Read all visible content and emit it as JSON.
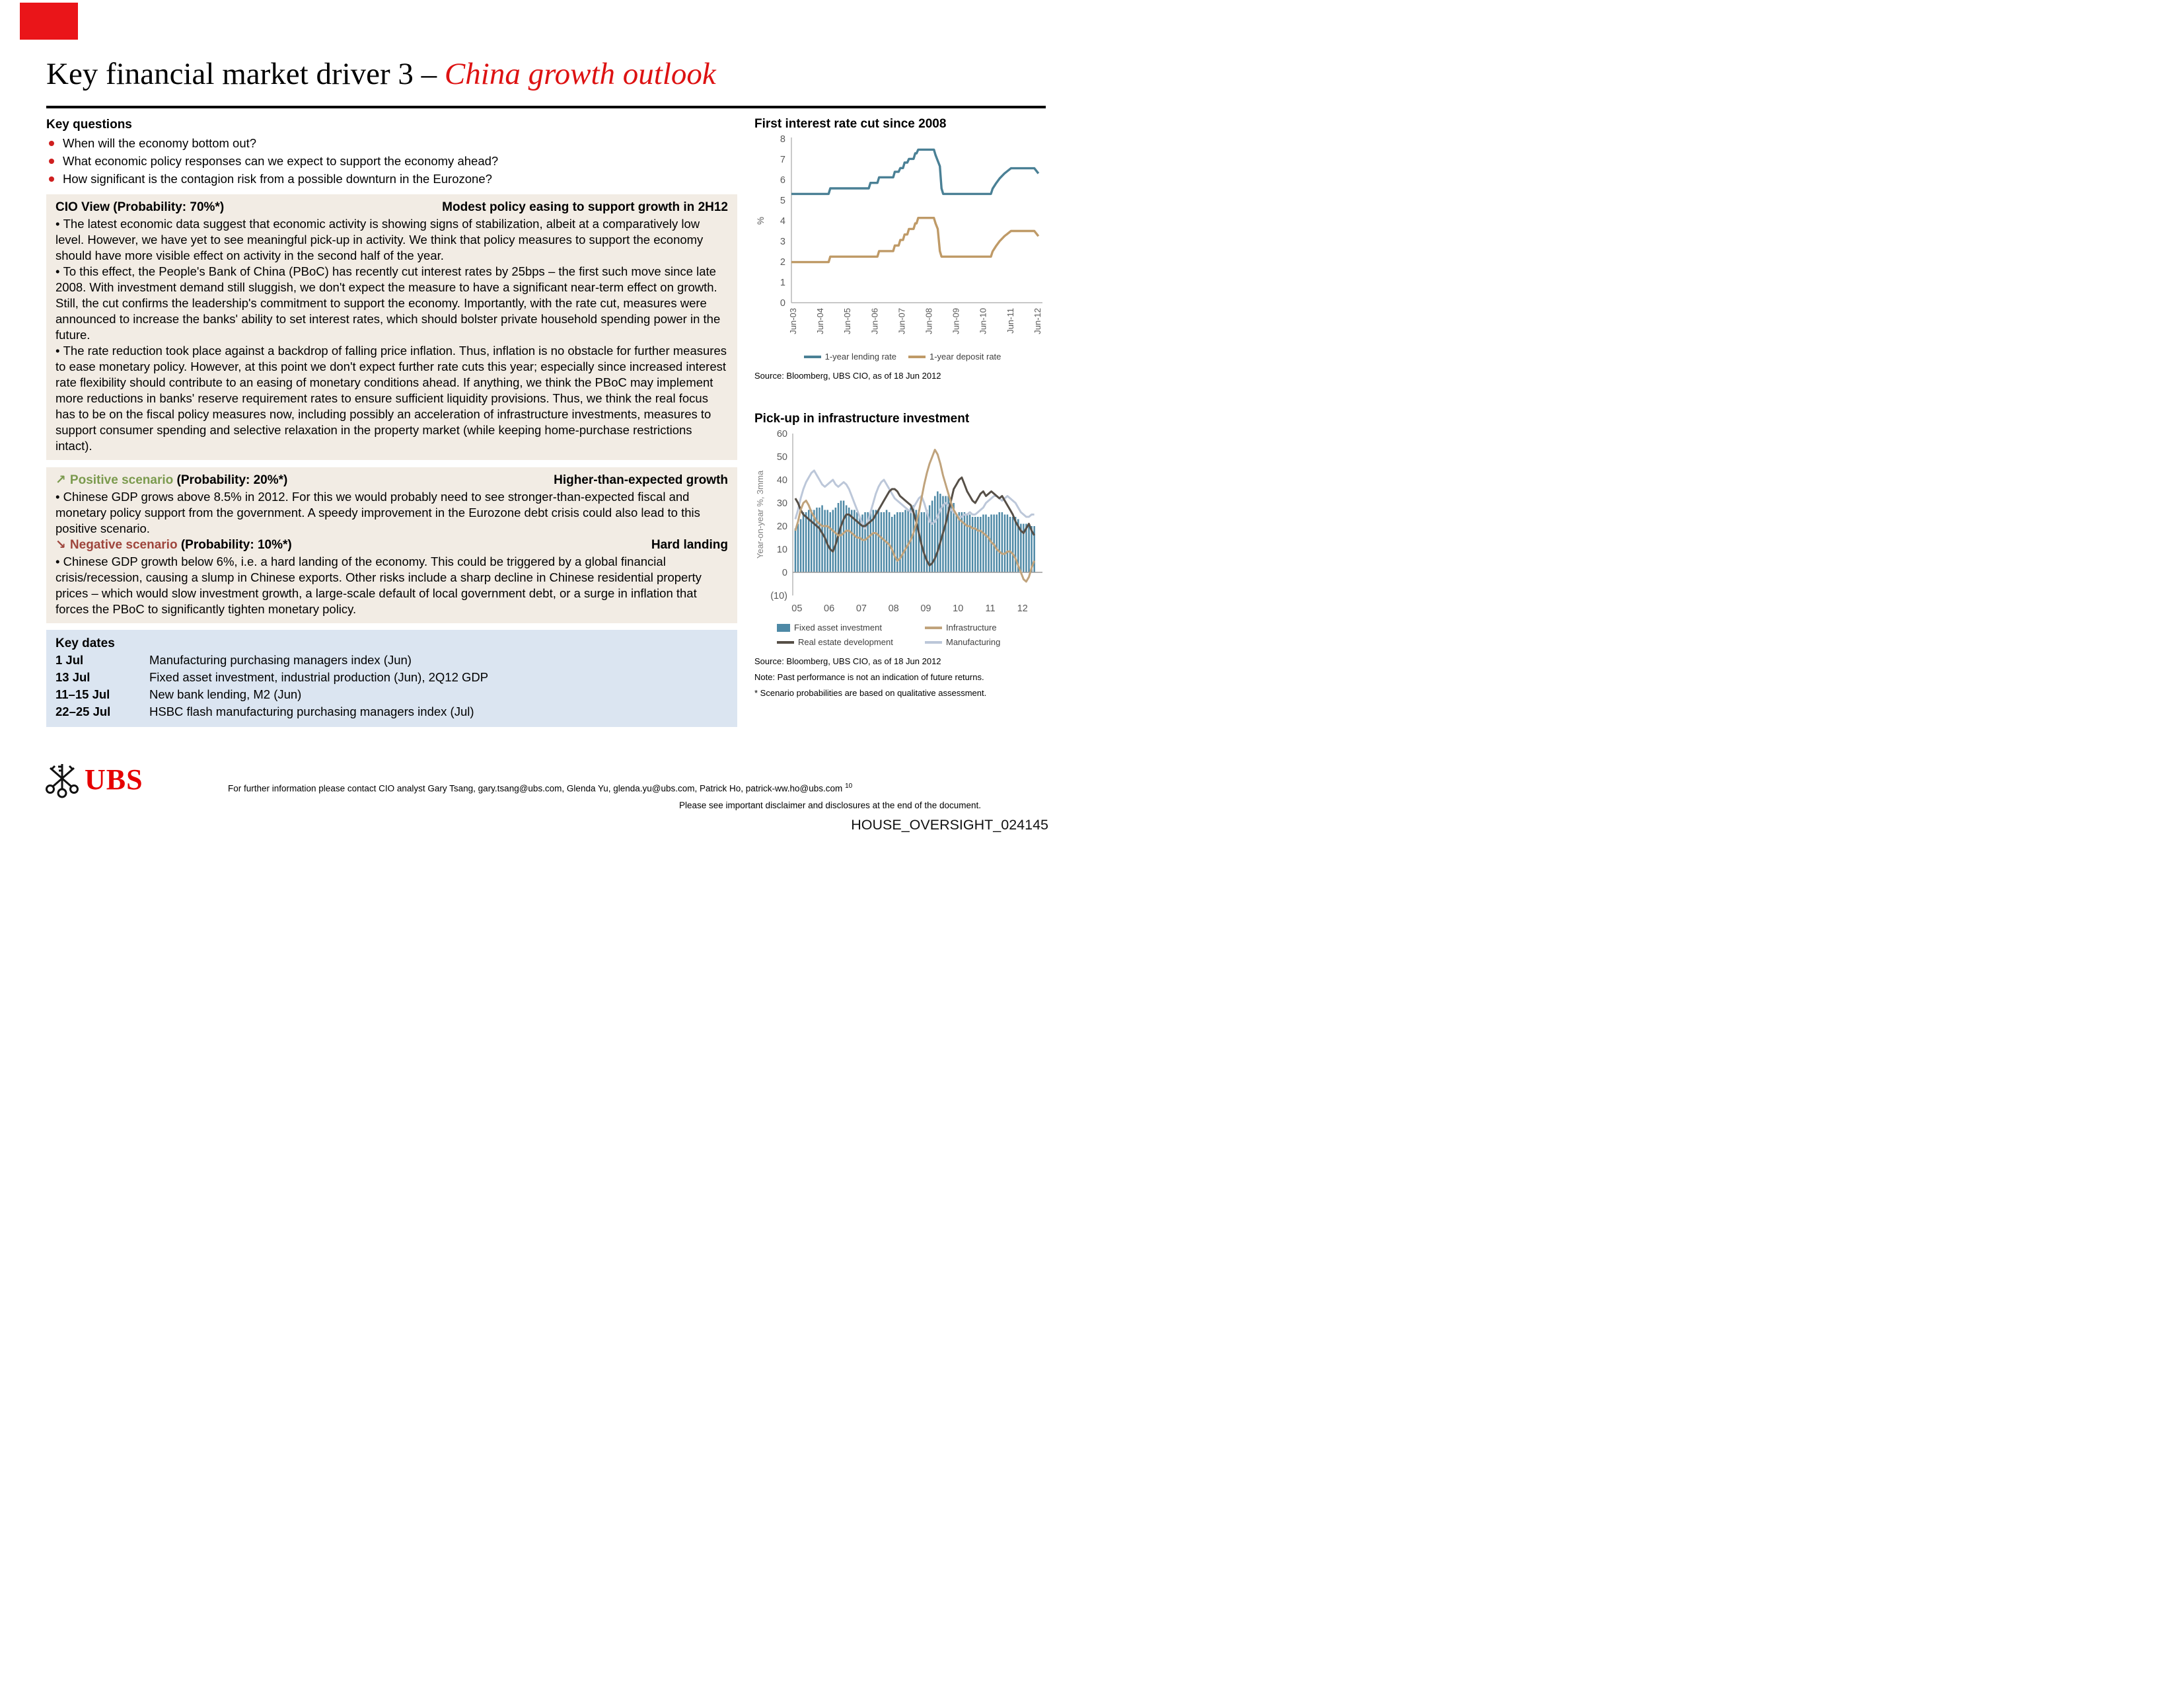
{
  "page": {
    "title_black": "Key financial market driver 3 – ",
    "title_red": "China growth outlook",
    "accent_red": "#dd1212",
    "red_mark_color": "#ea1519"
  },
  "key_questions": {
    "heading": "Key questions",
    "bullet_color": "#cf1f1f",
    "items": [
      "When will the economy bottom out?",
      "What economic policy responses can we expect to support the economy ahead?",
      "How significant is the contagion risk from a possible downturn in the Eurozone?"
    ]
  },
  "cio_view": {
    "heading": "CIO View (Probability: 70%*)",
    "tagline": "Modest policy easing to support growth in 2H12",
    "bullets": [
      "The latest economic data suggest that economic activity is showing signs of stabilization, albeit at a comparatively low level. However, we have yet to see meaningful pick-up in activity. We think that policy measures to support the economy should have more visible effect on activity in the second half of the year.",
      "To this effect, the People's Bank of China (PBoC) has recently cut interest rates by 25bps – the first such move since late 2008. With investment demand still sluggish, we don't expect the measure to have a significant near-term effect on growth. Still, the cut confirms the leadership's commitment to support the economy. Importantly, with the rate cut, measures were announced to increase the banks' ability to set interest rates, which should bolster private household spending power in the future.",
      "The rate reduction took place against a backdrop of falling price inflation. Thus, inflation is no obstacle for further measures to ease monetary policy. However, at this point we don't expect further rate cuts this year; especially since increased interest rate flexibility should contribute to an easing of monetary conditions ahead. If anything, we think the PBoC may implement more reductions in banks' reserve requirement rates to ensure sufficient liquidity provisions. Thus, we think the real focus has to be on the fiscal policy measures now, including possibly an acceleration of infrastructure investments, measures to support consumer spending and selective relaxation in the property market (while keeping home-purchase restrictions intact)."
    ]
  },
  "scenarios": {
    "positive": {
      "icon": "↗",
      "label": "Positive scenario",
      "label_color": "#7b9a4e",
      "probability": "(Probability: 20%*)",
      "tagline": "Higher-than-expected growth",
      "bullet": "Chinese GDP grows above 8.5% in 2012. For this we would probably need to see stronger-than-expected fiscal and monetary policy support from the government. A speedy improvement in the Eurozone debt crisis could also lead to this positive scenario."
    },
    "negative": {
      "icon": "↘",
      "label": "Negative scenario",
      "label_color": "#9e453c",
      "probability": "(Probability: 10%*)",
      "tagline": "Hard landing",
      "bullet": "Chinese GDP growth below 6%, i.e. a hard landing of the economy. This could be triggered by a global financial crisis/recession, causing a slump in Chinese exports. Other risks include a sharp decline in Chinese residential property prices – which would slow investment growth, a large-scale default of local government debt, or a surge in inflation that forces the PBoC to significantly tighten monetary policy."
    }
  },
  "key_dates": {
    "heading": "Key dates",
    "rows": [
      {
        "date": "1 Jul",
        "event": "Manufacturing purchasing managers index (Jun)"
      },
      {
        "date": "13 Jul",
        "event": "Fixed asset investment, industrial production (Jun), 2Q12 GDP"
      },
      {
        "date": "11–15 Jul",
        "event": "New bank lending, M2 (Jun)"
      },
      {
        "date": "22–25 Jul",
        "event": "HSBC flash manufacturing purchasing managers index (Jul)"
      }
    ]
  },
  "footer": {
    "logo_text": "UBS",
    "contact": "For further information please contact CIO analyst Gary Tsang, gary.tsang@ubs.com, Glenda Yu, glenda.yu@ubs.com, Patrick Ho, patrick-ww.ho@ubs.com",
    "page_number": "10",
    "disclaimer": "Please see important disclaimer and disclosures at the end of the document.",
    "stamp": "HOUSE_OVERSIGHT_024145"
  },
  "chart_data": [
    {
      "type": "line",
      "title": "First interest rate cut since 2008",
      "ylabel": "%",
      "ylim": [
        0,
        8
      ],
      "yticks": [
        0,
        1,
        2,
        3,
        4,
        5,
        6,
        7,
        8
      ],
      "xlim": [
        2003.45,
        2012.65
      ],
      "xticks": [
        {
          "x": 2003.5,
          "label": "Jun-03"
        },
        {
          "x": 2004.5,
          "label": "Jun-04"
        },
        {
          "x": 2005.5,
          "label": "Jun-05"
        },
        {
          "x": 2006.5,
          "label": "Jun-06"
        },
        {
          "x": 2007.5,
          "label": "Jun-07"
        },
        {
          "x": 2008.5,
          "label": "Jun-08"
        },
        {
          "x": 2009.5,
          "label": "Jun-09"
        },
        {
          "x": 2010.5,
          "label": "Jun-10"
        },
        {
          "x": 2011.5,
          "label": "Jun-11"
        },
        {
          "x": 2012.5,
          "label": "Jun-12"
        }
      ],
      "legend_position": "bottom",
      "grid": false,
      "source": "Source: Bloomberg, UBS CIO, as of 18 Jun 2012",
      "series": [
        {
          "name": "1-year lending rate",
          "color": "#4a8095",
          "points": [
            [
              2003.45,
              5.31
            ],
            [
              2004.82,
              5.31
            ],
            [
              2004.88,
              5.58
            ],
            [
              2006.3,
              5.58
            ],
            [
              2006.36,
              5.85
            ],
            [
              2006.62,
              5.85
            ],
            [
              2006.68,
              6.12
            ],
            [
              2007.2,
              6.12
            ],
            [
              2007.26,
              6.39
            ],
            [
              2007.4,
              6.39
            ],
            [
              2007.46,
              6.57
            ],
            [
              2007.56,
              6.57
            ],
            [
              2007.62,
              6.84
            ],
            [
              2007.72,
              6.84
            ],
            [
              2007.78,
              7.02
            ],
            [
              2007.95,
              7.02
            ],
            [
              2008.01,
              7.29
            ],
            [
              2008.06,
              7.29
            ],
            [
              2008.12,
              7.47
            ],
            [
              2008.7,
              7.47
            ],
            [
              2008.76,
              7.2
            ],
            [
              2008.84,
              6.93
            ],
            [
              2008.92,
              6.66
            ],
            [
              2008.98,
              5.58
            ],
            [
              2009.04,
              5.31
            ],
            [
              2010.8,
              5.31
            ],
            [
              2010.86,
              5.56
            ],
            [
              2010.98,
              5.81
            ],
            [
              2011.12,
              6.06
            ],
            [
              2011.3,
              6.31
            ],
            [
              2011.54,
              6.56
            ],
            [
              2012.4,
              6.56
            ],
            [
              2012.55,
              6.31
            ]
          ]
        },
        {
          "name": "1-year deposit rate",
          "color": "#bf9a67",
          "points": [
            [
              2003.45,
              1.98
            ],
            [
              2004.82,
              1.98
            ],
            [
              2004.88,
              2.25
            ],
            [
              2006.62,
              2.25
            ],
            [
              2006.68,
              2.52
            ],
            [
              2007.2,
              2.52
            ],
            [
              2007.26,
              2.79
            ],
            [
              2007.4,
              2.79
            ],
            [
              2007.46,
              3.06
            ],
            [
              2007.56,
              3.06
            ],
            [
              2007.62,
              3.33
            ],
            [
              2007.72,
              3.33
            ],
            [
              2007.78,
              3.6
            ],
            [
              2007.95,
              3.6
            ],
            [
              2008.01,
              3.87
            ],
            [
              2008.06,
              3.87
            ],
            [
              2008.12,
              4.14
            ],
            [
              2008.7,
              4.14
            ],
            [
              2008.76,
              3.87
            ],
            [
              2008.84,
              3.6
            ],
            [
              2008.92,
              2.52
            ],
            [
              2008.98,
              2.25
            ],
            [
              2010.8,
              2.25
            ],
            [
              2010.86,
              2.5
            ],
            [
              2010.98,
              2.75
            ],
            [
              2011.12,
              3.0
            ],
            [
              2011.3,
              3.25
            ],
            [
              2011.54,
              3.5
            ],
            [
              2012.4,
              3.5
            ],
            [
              2012.55,
              3.25
            ]
          ]
        }
      ]
    },
    {
      "type": "bar+line",
      "title": "Pick-up in infrastructure investment",
      "ylabel": "Year-on-year %, 3mma",
      "ylim": [
        -10,
        60
      ],
      "yticks": [
        {
          "v": 60,
          "label": "60"
        },
        {
          "v": 50,
          "label": "50"
        },
        {
          "v": 40,
          "label": "40"
        },
        {
          "v": 30,
          "label": "30"
        },
        {
          "v": 20,
          "label": "20"
        },
        {
          "v": 10,
          "label": "10"
        },
        {
          "v": 0,
          "label": "0"
        },
        {
          "v": -10,
          "label": "(10)"
        }
      ],
      "xlim": [
        2004.87,
        2012.62
      ],
      "x0": 2004.95,
      "dx": 0.08333,
      "xticks": [
        {
          "x": 2005,
          "label": "05"
        },
        {
          "x": 2006,
          "label": "06"
        },
        {
          "x": 2007,
          "label": "07"
        },
        {
          "x": 2008,
          "label": "08"
        },
        {
          "x": 2009,
          "label": "09"
        },
        {
          "x": 2010,
          "label": "10"
        },
        {
          "x": 2011,
          "label": "11"
        },
        {
          "x": 2012,
          "label": "12"
        }
      ],
      "source": "Source: Bloomberg, UBS CIO, as of 18 Jun 2012",
      "note": "Note: Past performance is not an indication of future returns.",
      "footnote": "* Scenario probabilities are based on qualitative assessment.",
      "bars": {
        "name": "Fixed asset investment",
        "color": "#4e89a6",
        "values": [
          19,
          21,
          23,
          26,
          26,
          27,
          27,
          27,
          28,
          28,
          29,
          27,
          27,
          26,
          27,
          28,
          30,
          31,
          31,
          29,
          28,
          27,
          27,
          26,
          24,
          25,
          26,
          26,
          26,
          27,
          27,
          27,
          26,
          26,
          27,
          26,
          24,
          25,
          26,
          26,
          26,
          27,
          27,
          28,
          29,
          27,
          27,
          26,
          26,
          27,
          29,
          31,
          33,
          35,
          34,
          33,
          33,
          33,
          32,
          30,
          25,
          26,
          26,
          26,
          25,
          25,
          24,
          24,
          24,
          24,
          25,
          25,
          24,
          25,
          25,
          25,
          26,
          26,
          25,
          25,
          24,
          24,
          24,
          23,
          21,
          21,
          21,
          20,
          20,
          20
        ]
      },
      "series": [
        {
          "name": "Infrastructure",
          "color": "#c0a37c",
          "values": [
            18,
            22,
            27,
            30,
            31,
            29,
            26,
            24,
            22,
            21,
            20,
            20,
            20,
            19,
            18,
            17,
            16,
            16,
            17,
            18,
            18,
            17,
            16,
            15,
            15,
            14,
            14,
            15,
            16,
            17,
            17,
            16,
            15,
            14,
            13,
            12,
            10,
            7,
            5,
            6,
            8,
            10,
            12,
            14,
            17,
            21,
            26,
            32,
            38,
            43,
            47,
            50,
            53,
            51,
            47,
            42,
            38,
            34,
            30,
            27,
            25,
            23,
            22,
            21,
            20,
            20,
            19,
            19,
            18,
            18,
            17,
            16,
            15,
            13,
            12,
            10,
            9,
            8,
            8,
            9,
            9,
            8,
            6,
            3,
            0,
            -3,
            -4,
            -2,
            2,
            5
          ]
        },
        {
          "name": "Real estate development",
          "color": "#564f47",
          "values": [
            32,
            30,
            27,
            25,
            24,
            23,
            22,
            21,
            20,
            19,
            17,
            15,
            12,
            10,
            9,
            12,
            16,
            20,
            23,
            25,
            25,
            24,
            23,
            22,
            21,
            20,
            20,
            21,
            22,
            23,
            25,
            27,
            29,
            31,
            33,
            35,
            36,
            36,
            35,
            33,
            32,
            31,
            30,
            29,
            26,
            22,
            17,
            12,
            8,
            5,
            3,
            4,
            6,
            9,
            13,
            17,
            21,
            26,
            31,
            36,
            38,
            40,
            41,
            38,
            35,
            33,
            31,
            30,
            32,
            34,
            35,
            33,
            34,
            35,
            34,
            33,
            32,
            33,
            31,
            29,
            27,
            25,
            22,
            20,
            18,
            17,
            19,
            21,
            18,
            16
          ]
        },
        {
          "name": "Manufacturing",
          "color": "#bcc7d9",
          "values": [
            23,
            27,
            32,
            36,
            39,
            41,
            43,
            44,
            42,
            40,
            38,
            37,
            38,
            39,
            40,
            38,
            37,
            38,
            39,
            38,
            36,
            33,
            30,
            27,
            24,
            21,
            19,
            22,
            26,
            30,
            34,
            37,
            39,
            40,
            38,
            36,
            34,
            32,
            31,
            30,
            29,
            28,
            27,
            26,
            28,
            30,
            32,
            33,
            30,
            26,
            22,
            21,
            22,
            24,
            27,
            29,
            30,
            29,
            27,
            26,
            25,
            24,
            24,
            25,
            25,
            26,
            25,
            25,
            26,
            27,
            28,
            30,
            31,
            32,
            33,
            33,
            32,
            31,
            32,
            33,
            32,
            31,
            30,
            28,
            26,
            25,
            24,
            24,
            25,
            25
          ]
        }
      ]
    }
  ]
}
